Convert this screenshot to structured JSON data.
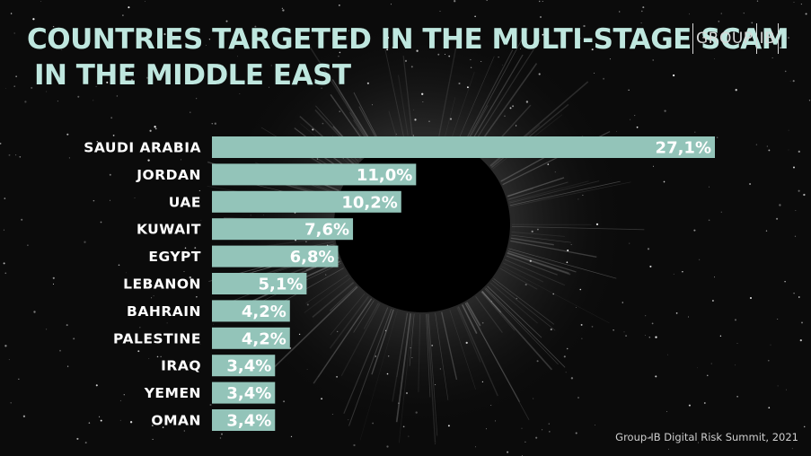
{
  "header": {
    "title_line1": "COUNTRIES TARGETED IN THE MULTI-STAGE SCAM",
    "title_line2": "IN THE MIDDLE EAST"
  },
  "logo": {
    "left_text": "GROUP",
    "right_text": "IB"
  },
  "footer": {
    "source": "Group-IB Digital Risk Summit, 2021"
  },
  "colors": {
    "bar": "#93c4b9",
    "title": "#bfe7df",
    "text": "#ffffff",
    "background": "#0b0b0b"
  },
  "chart_data": {
    "type": "bar",
    "orientation": "horizontal",
    "title": "COUNTRIES TARGETED IN THE MULTI-STAGE SCAM IN THE MIDDLE EAST",
    "categories": [
      "SAUDI ARABIA",
      "JORDAN",
      "UAE",
      "KUWAIT",
      "EGYPT",
      "LEBANON",
      "BAHRAIN",
      "PALESTINE",
      "IRAQ",
      "YEMEN",
      "OMAN"
    ],
    "values": [
      27.1,
      11.0,
      10.2,
      7.6,
      6.8,
      5.1,
      4.2,
      4.2,
      3.4,
      3.4,
      3.4
    ],
    "labels": [
      "27,1%",
      "11,0%",
      "10,2%",
      "7,6%",
      "6,8%",
      "5,1%",
      "4,2%",
      "4,2%",
      "3,4%",
      "3,4%",
      "3,4%"
    ],
    "unit": "%",
    "grid": false,
    "legend": "none"
  }
}
